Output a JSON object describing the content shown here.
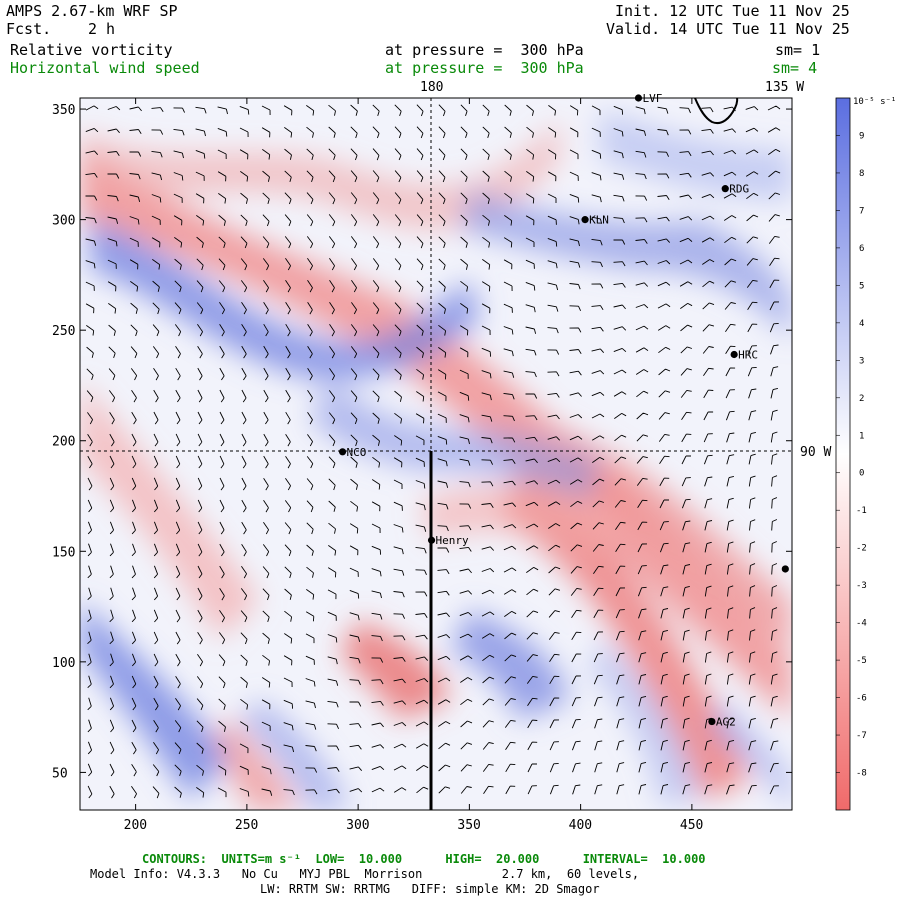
{
  "header": {
    "model": "AMPS 2.67-km WRF SP",
    "fcst_label": "Fcst.",
    "fcst_value": "2 h",
    "init": "Init. 12 UTC Tue 11 Nov 25",
    "valid": "Valid. 14 UTC Tue 11 Nov 25",
    "field1": "Relative vorticity",
    "field1_level": "at pressure =  300 hPa",
    "field1_sm": "sm= 1",
    "field2": "Horizontal wind speed",
    "field2_level": "at pressure =  300 hPa",
    "field2_sm": "sm= 4"
  },
  "map": {
    "x_ticks": [
      200,
      250,
      300,
      350,
      400,
      450
    ],
    "y_ticks": [
      50,
      100,
      150,
      200,
      250,
      300,
      350
    ],
    "x_range": [
      175,
      495
    ],
    "y_range": [
      33,
      355
    ],
    "meridian_label": "180",
    "meridian_label_2": "135 W",
    "parallel_label": "90 W",
    "stations": [
      {
        "name": "LVF",
        "x": 426,
        "y": 355
      },
      {
        "name": "RDG",
        "x": 465,
        "y": 314
      },
      {
        "name": "KLN",
        "x": 402,
        "y": 300
      },
      {
        "name": "HRC",
        "x": 469,
        "y": 239
      },
      {
        "name": "NCO",
        "x": 293,
        "y": 195
      },
      {
        "name": "Henry",
        "x": 333,
        "y": 155
      },
      {
        "name": "AG2",
        "x": 459,
        "y": 73
      },
      {
        "name": "",
        "x": 492,
        "y": 142
      }
    ],
    "colors": {
      "positive": "#5b6ee0",
      "negative": "#f06a6a",
      "neutral": "#ffffff",
      "wind": "#000000",
      "grid": "#000000"
    }
  },
  "colorbar": {
    "unit": "10⁻⁵ s⁻¹",
    "labels": [
      "9",
      "8",
      "7",
      "6",
      "5",
      "4",
      "3",
      "2",
      "1",
      "0",
      "-1",
      "-2",
      "-3",
      "-4",
      "-5",
      "-6",
      "-7",
      "-8"
    ]
  },
  "footer": {
    "contours": "CONTOURS:  UNITS=m s⁻¹  LOW=  10.000      HIGH=  20.000      INTERVAL=  10.000",
    "model_info": "Model Info: V4.3.3   No Cu   MYJ PBL  Morrison           2.7 km,  60 levels,",
    "model_info2": "LW: RRTM SW: RRTMG   DIFF: simple KM: 2D Smagor"
  }
}
